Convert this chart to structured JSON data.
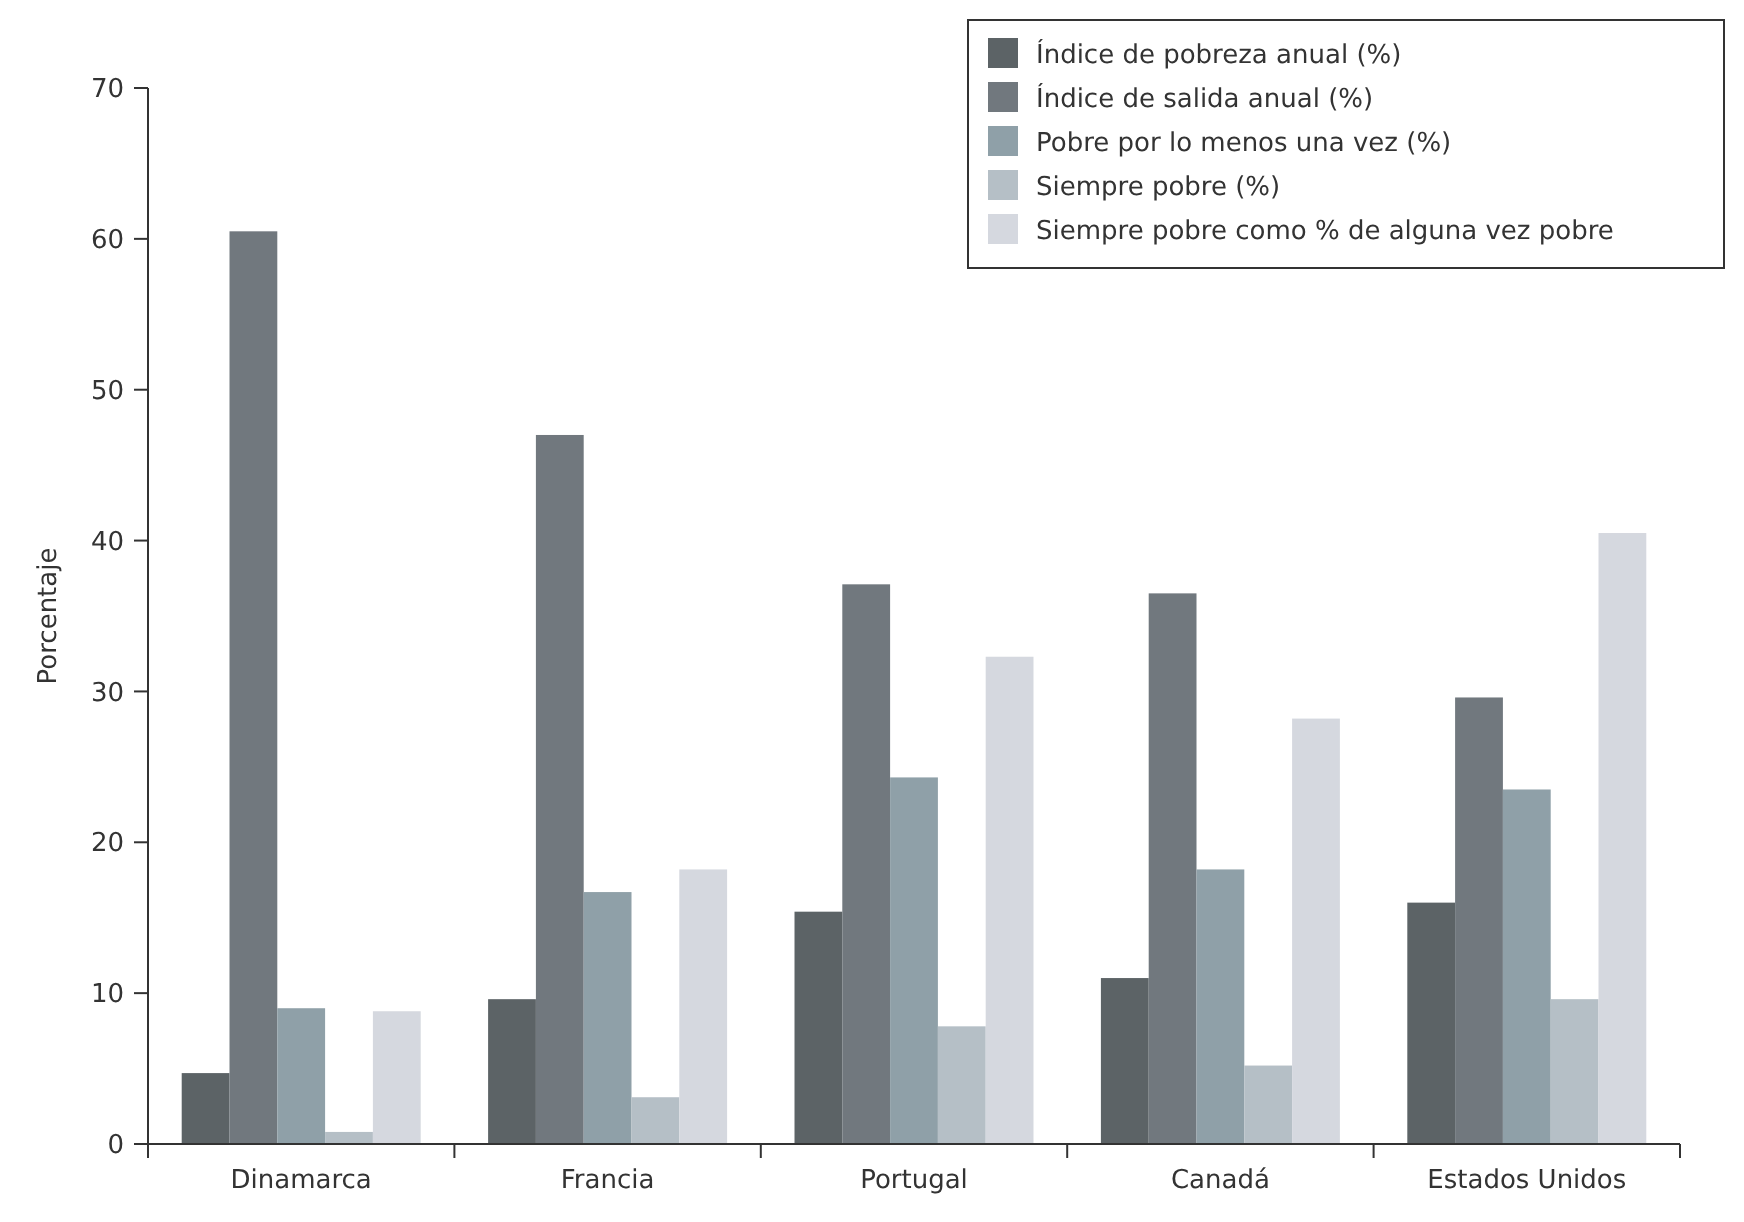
{
  "chart_data": {
    "type": "bar",
    "ylabel": "Porcentaje",
    "categories": [
      "Dinamarca",
      "Francia",
      "Portugal",
      "Canadá",
      "Estados Unidos"
    ],
    "series": [
      {
        "name": "Índice de pobreza anual (%)",
        "color": "#5c6366",
        "values": [
          4.7,
          9.6,
          15.4,
          11,
          16
        ]
      },
      {
        "name": "Índice de salida anual (%)",
        "color": "#71787e",
        "values": [
          60.5,
          47,
          37.1,
          36.5,
          29.6
        ]
      },
      {
        "name": "Pobre por lo menos una vez (%)",
        "color": "#8fa0a8",
        "values": [
          9,
          16.7,
          24.3,
          18.2,
          23.5
        ]
      },
      {
        "name": "Siempre pobre (%)",
        "color": "#b5bfc6",
        "values": [
          0.8,
          3.1,
          7.8,
          5.2,
          9.6
        ]
      },
      {
        "name": "Siempre pobre como % de alguna vez pobre",
        "color": "#d5d8df",
        "values": [
          8.8,
          18.2,
          32.3,
          28.2,
          40.5
        ]
      }
    ],
    "ylim": [
      0,
      70
    ],
    "yticks": [
      0,
      10,
      20,
      30,
      40,
      50,
      60,
      70
    ],
    "grid": false,
    "legend": "top right"
  }
}
